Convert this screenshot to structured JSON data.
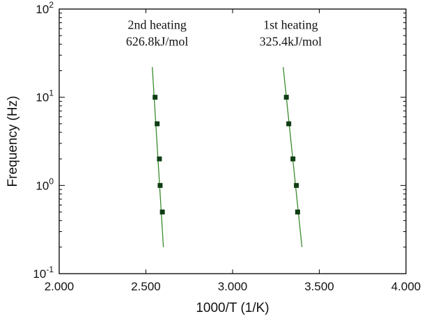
{
  "chart_data": {
    "type": "scatter",
    "xlabel": "1000/T (1/K)",
    "ylabel": "Frequency (Hz)",
    "xlim": [
      2.0,
      4.0
    ],
    "ylim": [
      0.1,
      100
    ],
    "yscale": "log",
    "grid": false,
    "xticks": [
      {
        "value": 2.0,
        "label": "2.000"
      },
      {
        "value": 2.5,
        "label": "2.500"
      },
      {
        "value": 3.0,
        "label": "3.000"
      },
      {
        "value": 3.5,
        "label": "3.500"
      },
      {
        "value": 4.0,
        "label": "4.000"
      }
    ],
    "yticks": [
      {
        "value": 0.1,
        "base": "10",
        "exp": "-1"
      },
      {
        "value": 1,
        "base": "10",
        "exp": "0"
      },
      {
        "value": 10,
        "base": "10",
        "exp": "1"
      },
      {
        "value": 100,
        "base": "10",
        "exp": "2"
      }
    ],
    "series": [
      {
        "points": [
          {
            "x": 2.553,
            "y": 10
          },
          {
            "x": 2.565,
            "y": 5
          },
          {
            "x": 2.578,
            "y": 2
          },
          {
            "x": 2.582,
            "y": 1
          },
          {
            "x": 2.595,
            "y": 0.5
          }
        ],
        "fit": [
          {
            "x": 2.537,
            "y": 22
          },
          {
            "x": 2.601,
            "y": 0.2
          }
        ],
        "marker_color": "#0f3d14",
        "line_color": "#3a8a2e"
      },
      {
        "points": [
          {
            "x": 3.31,
            "y": 10
          },
          {
            "x": 3.324,
            "y": 5
          },
          {
            "x": 3.348,
            "y": 2
          },
          {
            "x": 3.368,
            "y": 1
          },
          {
            "x": 3.375,
            "y": 0.5
          }
        ],
        "fit": [
          {
            "x": 3.292,
            "y": 22
          },
          {
            "x": 3.4,
            "y": 0.2
          }
        ],
        "marker_color": "#0f3d14",
        "line_color": "#3a8a2e"
      }
    ],
    "annotations": [
      {
        "lines": [
          "2nd heating",
          "626.8kJ/mol"
        ],
        "x": 2.565,
        "y": 40
      },
      {
        "lines": [
          "1st heating",
          "325.4kJ/mol"
        ],
        "x": 3.335,
        "y": 40
      }
    ]
  }
}
